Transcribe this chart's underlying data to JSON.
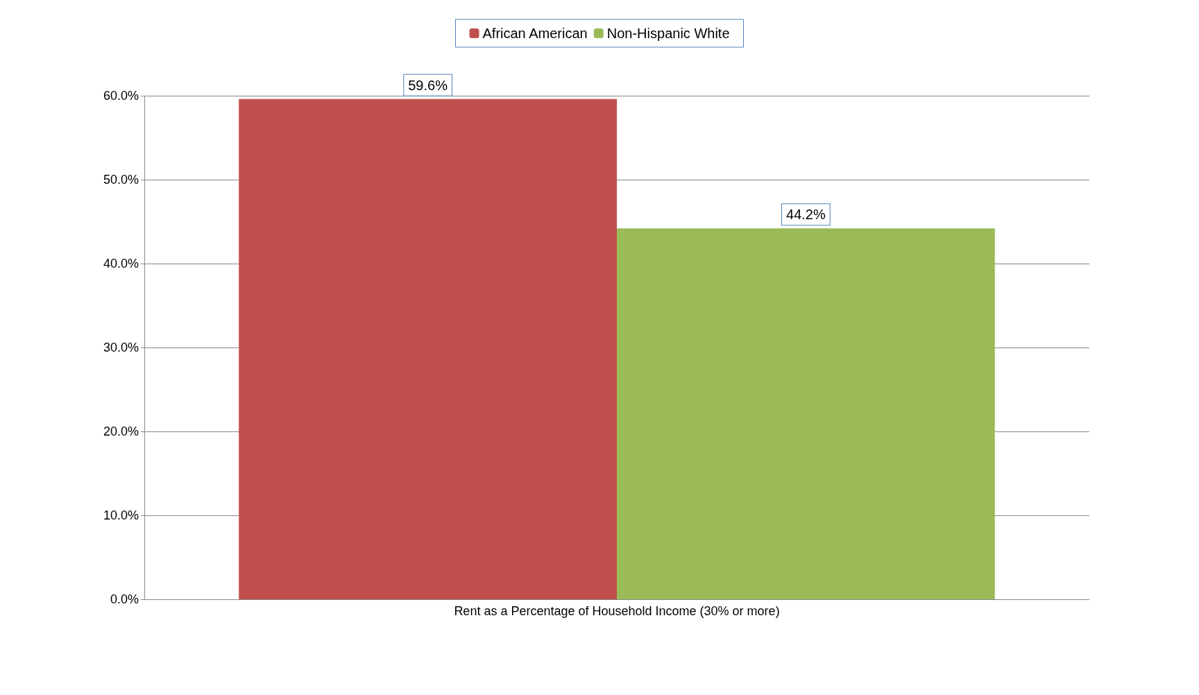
{
  "chart_data": {
    "type": "bar",
    "categories": [
      "Rent as a Percentage of Household Income (30% or more)"
    ],
    "series": [
      {
        "name": "African American",
        "color": "#c0504d",
        "values": [
          59.6
        ],
        "value_labels": [
          "59.6%"
        ]
      },
      {
        "name": "Non-Hispanic White",
        "color": "#9bbb59",
        "values": [
          44.2
        ],
        "value_labels": [
          "44.2%"
        ]
      }
    ],
    "ylim": [
      0,
      60
    ],
    "yticks": [
      {
        "value": 0,
        "label": "0.0%"
      },
      {
        "value": 10,
        "label": "10.0%"
      },
      {
        "value": 20,
        "label": "20.0%"
      },
      {
        "value": 30,
        "label": "30.0%"
      },
      {
        "value": 40,
        "label": "40.0%"
      },
      {
        "value": 50,
        "label": "50.0%"
      },
      {
        "value": 60,
        "label": "60.0%"
      }
    ],
    "grid": "y",
    "legend": "top"
  }
}
